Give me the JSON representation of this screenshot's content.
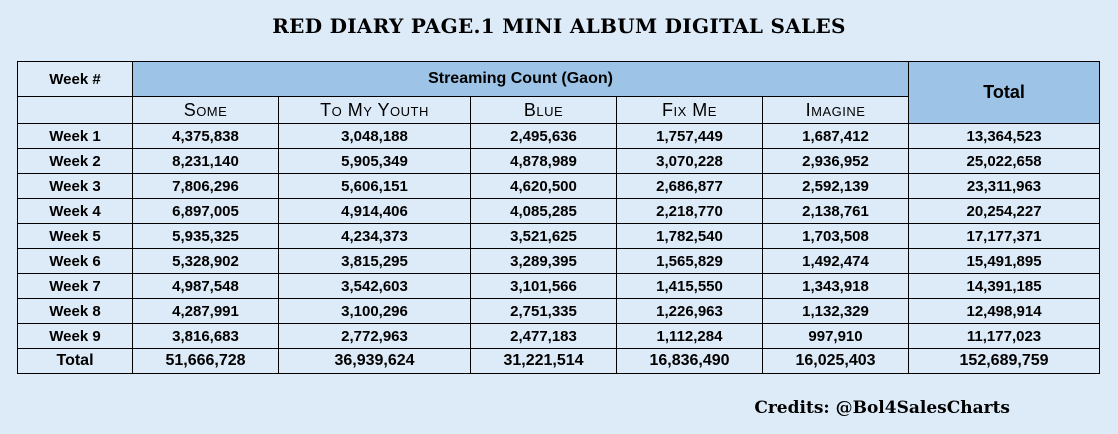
{
  "title": "RED DIARY PAGE.1 MINI ALBUM DIGITAL SALES",
  "credits": "Credits: @Bol4SalesCharts",
  "chart_data": {
    "type": "table",
    "header": {
      "week_col": "Week #",
      "group": "Streaming Count (Gaon)",
      "total": "Total"
    },
    "columns": [
      "Some",
      "To My Youth",
      "Blue",
      "Fix Me",
      "Imagine"
    ],
    "rows": [
      {
        "label": "Week 1",
        "values": [
          "4,375,838",
          "3,048,188",
          "2,495,636",
          "1,757,449",
          "1,687,412"
        ],
        "total": "13,364,523"
      },
      {
        "label": "Week 2",
        "values": [
          "8,231,140",
          "5,905,349",
          "4,878,989",
          "3,070,228",
          "2,936,952"
        ],
        "total": "25,022,658"
      },
      {
        "label": "Week 3",
        "values": [
          "7,806,296",
          "5,606,151",
          "4,620,500",
          "2,686,877",
          "2,592,139"
        ],
        "total": "23,311,963"
      },
      {
        "label": "Week 4",
        "values": [
          "6,897,005",
          "4,914,406",
          "4,085,285",
          "2,218,770",
          "2,138,761"
        ],
        "total": "20,254,227"
      },
      {
        "label": "Week 5",
        "values": [
          "5,935,325",
          "4,234,373",
          "3,521,625",
          "1,782,540",
          "1,703,508"
        ],
        "total": "17,177,371"
      },
      {
        "label": "Week 6",
        "values": [
          "5,328,902",
          "3,815,295",
          "3,289,395",
          "1,565,829",
          "1,492,474"
        ],
        "total": "15,491,895"
      },
      {
        "label": "Week 7",
        "values": [
          "4,987,548",
          "3,542,603",
          "3,101,566",
          "1,415,550",
          "1,343,918"
        ],
        "total": "14,391,185"
      },
      {
        "label": "Week 8",
        "values": [
          "4,287,991",
          "3,100,296",
          "2,751,335",
          "1,226,963",
          "1,132,329"
        ],
        "total": "12,498,914"
      },
      {
        "label": "Week 9",
        "values": [
          "3,816,683",
          "2,772,963",
          "2,477,183",
          "1,112,284",
          "997,910"
        ],
        "total": "11,177,023"
      }
    ],
    "totals_row": {
      "label": "Total",
      "values": [
        "51,666,728",
        "36,939,624",
        "31,221,514",
        "16,836,490",
        "16,025,403"
      ],
      "total": "152,689,759"
    }
  },
  "colors": {
    "background": "#ddeaf7",
    "header_fill": "#9dc3e6"
  }
}
